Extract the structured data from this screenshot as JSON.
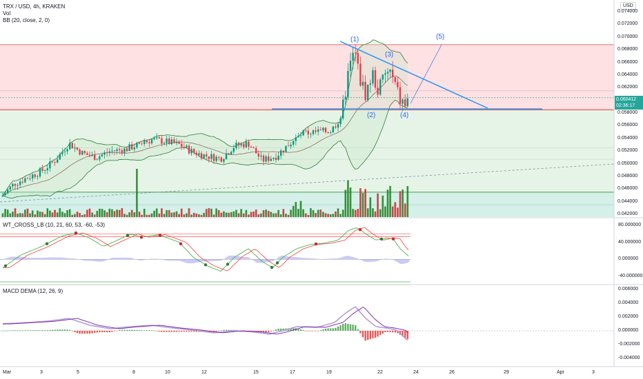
{
  "header": {
    "symbol_line": "TRX / USD, 4h, KRAKEN",
    "vol_label": "Vol",
    "bb_label": "BB (20, close, 2, 0)",
    "currency_button": "USD"
  },
  "price_axis": {
    "ticks": [
      "0.074000",
      "0.072000",
      "0.070000",
      "0.068000",
      "0.066000",
      "0.064000",
      "0.062000",
      "0.058000",
      "0.056000",
      "0.054000",
      "0.052000",
      "0.050000",
      "0.048000",
      "0.046000",
      "0.044000",
      "0.042000"
    ],
    "current_price": "0.060412",
    "countdown": "02:36:17"
  },
  "wt_panel": {
    "label": "WT_CROSS_LB (10, 21, 60, 53, -60, -53)",
    "ticks": [
      "80.000000",
      "40.000000",
      "0.000000",
      "-40.000000"
    ]
  },
  "macd_panel": {
    "label": "MACD DEMA (12, 26, 9)",
    "ticks": [
      "0.006000",
      "0.004000",
      "0.002000",
      "0.000000",
      "-0.002000",
      "-0.004000"
    ]
  },
  "time_axis": {
    "ticks": [
      "Mar",
      "3",
      "5",
      "8",
      "10",
      "12",
      "15",
      "17",
      "19",
      "22",
      "24",
      "26",
      "29",
      "Apr",
      "3"
    ]
  },
  "waves": [
    "(1)",
    "(2)",
    "(3)",
    "(4)",
    "(5)"
  ],
  "colors": {
    "up": "#089981",
    "down": "#f23645",
    "bb": "#2e7d32",
    "trendline": "#2196f3",
    "resistance_zone": "#fcd7d9",
    "support_zone": "#e3f3e5",
    "wt_fast": "#4caf50",
    "wt_slow": "#ef5350",
    "wt_diff": "#b2b5f5",
    "macd_line": "#b39ddb",
    "signal_line": "#7b1fa2"
  },
  "chart_data": [
    {
      "type": "candlestick",
      "title": "TRX / USD, 4h, KRAKEN",
      "ylim": [
        0.042,
        0.0745
      ],
      "series": [
        {
          "name": "TRX / USD",
          "x": [
            "Mar 1",
            "Mar 3",
            "Mar 5",
            "Mar 8",
            "Mar 10",
            "Mar 12",
            "Mar 15",
            "Mar 17",
            "Mar 19",
            "Mar 20",
            "Mar 21",
            "Mar 22",
            "Mar 23"
          ],
          "close": [
            0.0448,
            0.0505,
            0.0535,
            0.0532,
            0.0538,
            0.0515,
            0.0522,
            0.0528,
            0.0555,
            0.0678,
            0.0615,
            0.064,
            0.0604
          ]
        },
        {
          "name": "Vol"
        },
        {
          "name": "BB (20, close, 2, 0)"
        }
      ],
      "annotations": {
        "resistance_zone": [
          0.0585,
          0.0688
        ],
        "support_zone": [
          0.042,
          0.0585
        ],
        "triangle_upper": [
          [
            0.069,
            "Mar 20"
          ],
          [
            0.059,
            "Mar 27"
          ]
        ],
        "triangle_lower": 0.0591,
        "last_price": 0.060412
      }
    },
    {
      "type": "line",
      "title": "WT_CROSS_LB (10, 21, 60, 53, -60, -53)",
      "ylim": [
        -55,
        85
      ],
      "series": [
        {
          "name": "WT1"
        },
        {
          "name": "WT2"
        }
      ]
    },
    {
      "type": "line",
      "title": "MACD DEMA (12, 26, 9)",
      "ylim": [
        -0.0042,
        0.0062
      ],
      "series": [
        {
          "name": "MACD"
        },
        {
          "name": "Signal"
        },
        {
          "name": "Histogram"
        }
      ]
    }
  ]
}
